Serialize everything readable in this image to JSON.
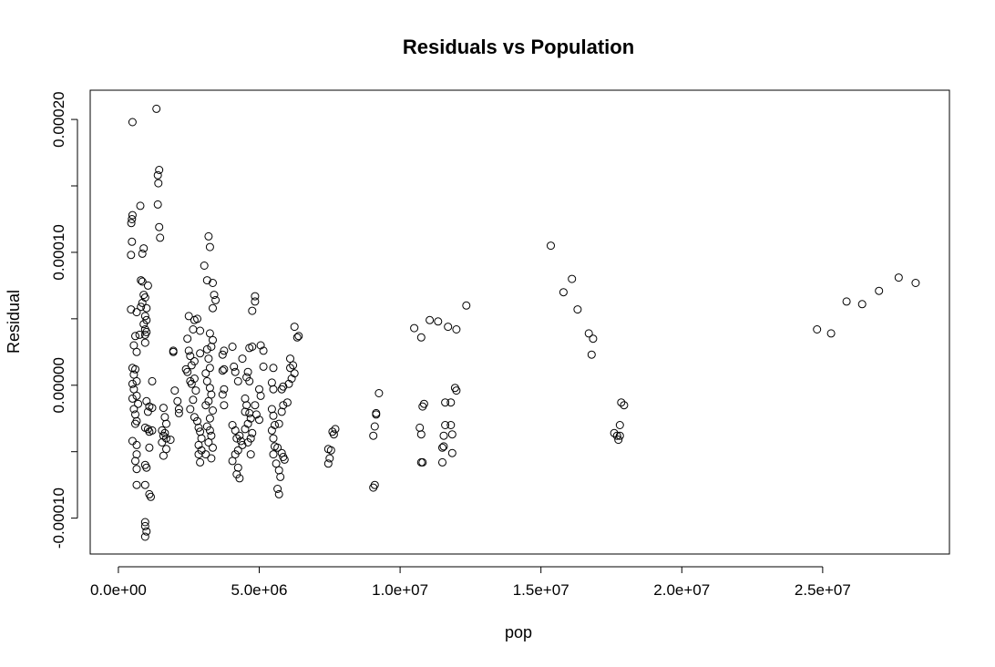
{
  "chart_data": {
    "type": "scatter",
    "title": "Residuals vs Population",
    "xlabel": "pop",
    "ylabel": "Residual",
    "xlim": [
      -1000000,
      29500000
    ],
    "ylim": [
      -0.000127,
      0.000222
    ],
    "x_ticks": [
      {
        "value": 0,
        "label": "0.0e+00"
      },
      {
        "value": 5000000,
        "label": "5.0e+06"
      },
      {
        "value": 10000000,
        "label": "1.0e+07"
      },
      {
        "value": 15000000,
        "label": "1.5e+07"
      },
      {
        "value": 20000000,
        "label": "2.0e+07"
      },
      {
        "value": 25000000,
        "label": "2.5e+07"
      }
    ],
    "y_ticks": [
      {
        "value": -0.0001,
        "label": "-0.00010"
      },
      {
        "value": -5e-05,
        "label": ""
      },
      {
        "value": 0.0,
        "label": "0.00000"
      },
      {
        "value": 5e-05,
        "label": ""
      },
      {
        "value": 0.0001,
        "label": "0.00010"
      },
      {
        "value": 0.00015,
        "label": ""
      },
      {
        "value": 0.0002,
        "label": "0.00020"
      }
    ],
    "grid": false,
    "marker": "open-circle",
    "points": [
      [
        500000,
        0.000198
      ],
      [
        1350000,
        0.000208
      ],
      [
        1450000,
        0.000162
      ],
      [
        1400000,
        0.000158
      ],
      [
        1420000,
        0.000152
      ],
      [
        1400000,
        0.000136
      ],
      [
        1450000,
        0.000119
      ],
      [
        1480000,
        0.000111
      ],
      [
        500000,
        0.000128
      ],
      [
        480000,
        0.000125
      ],
      [
        460000,
        0.000122
      ],
      [
        780000,
        0.000135
      ],
      [
        480000,
        0.000108
      ],
      [
        900000,
        0.000103
      ],
      [
        850000,
        9.9e-05
      ],
      [
        450000,
        9.8e-05
      ],
      [
        800000,
        7.9e-05
      ],
      [
        850000,
        7.8e-05
      ],
      [
        1050000,
        7.5e-05
      ],
      [
        900000,
        6.8e-05
      ],
      [
        950000,
        6.6e-05
      ],
      [
        850000,
        6.2e-05
      ],
      [
        1000000,
        5.8e-05
      ],
      [
        800000,
        5.9e-05
      ],
      [
        950000,
        5.2e-05
      ],
      [
        1000000,
        4.9e-05
      ],
      [
        450000,
        5.7e-05
      ],
      [
        650000,
        5.5e-05
      ],
      [
        900000,
        4.6e-05
      ],
      [
        950000,
        4.2e-05
      ],
      [
        1000000,
        4e-05
      ],
      [
        950000,
        3.8e-05
      ],
      [
        750000,
        3.8e-05
      ],
      [
        600000,
        3.7e-05
      ],
      [
        550000,
        3e-05
      ],
      [
        650000,
        2.5e-05
      ],
      [
        950000,
        3.2e-05
      ],
      [
        500000,
        1.3e-05
      ],
      [
        600000,
        1.2e-05
      ],
      [
        550000,
        8e-06
      ],
      [
        650000,
        3e-06
      ],
      [
        500000,
        1e-06
      ],
      [
        550000,
        -3e-06
      ],
      [
        650000,
        -8e-06
      ],
      [
        500000,
        -1e-05
      ],
      [
        700000,
        -1.4e-05
      ],
      [
        550000,
        -1.8e-05
      ],
      [
        600000,
        -2.2e-05
      ],
      [
        650000,
        -2.7e-05
      ],
      [
        600000,
        -2.9e-05
      ],
      [
        1000000,
        -1.2e-05
      ],
      [
        1100000,
        -1.6e-05
      ],
      [
        1200000,
        3e-06
      ],
      [
        1050000,
        -2e-05
      ],
      [
        1200000,
        -1.7e-05
      ],
      [
        950000,
        -3.2e-05
      ],
      [
        1050000,
        -3.3e-05
      ],
      [
        1100000,
        -3.5e-05
      ],
      [
        1200000,
        -3.4e-05
      ],
      [
        500000,
        -4.2e-05
      ],
      [
        650000,
        -4.5e-05
      ],
      [
        650000,
        -5.2e-05
      ],
      [
        600000,
        -5.7e-05
      ],
      [
        650000,
        -6.3e-05
      ],
      [
        1100000,
        -4.7e-05
      ],
      [
        950000,
        -6e-05
      ],
      [
        1000000,
        -6.2e-05
      ],
      [
        650000,
        -7.5e-05
      ],
      [
        950000,
        -7.5e-05
      ],
      [
        1100000,
        -8.2e-05
      ],
      [
        1150000,
        -8.4e-05
      ],
      [
        950000,
        -0.000103
      ],
      [
        950000,
        -0.000106
      ],
      [
        1000000,
        -0.00011
      ],
      [
        950000,
        -0.000114
      ],
      [
        1600000,
        -1.7e-05
      ],
      [
        1650000,
        -2.4e-05
      ],
      [
        1700000,
        -2.9e-05
      ],
      [
        1550000,
        -3.4e-05
      ],
      [
        1650000,
        -3.6e-05
      ],
      [
        1600000,
        -3.8e-05
      ],
      [
        1700000,
        -4e-05
      ],
      [
        1550000,
        -4.3e-05
      ],
      [
        1700000,
        -4.8e-05
      ],
      [
        1600000,
        -5.3e-05
      ],
      [
        1850000,
        -4.1e-05
      ],
      [
        1950000,
        2.6e-05
      ],
      [
        1950000,
        2.5e-05
      ],
      [
        2000000,
        -4e-06
      ],
      [
        2100000,
        -1.2e-05
      ],
      [
        2150000,
        -1.8e-05
      ],
      [
        2150000,
        -2.1e-05
      ],
      [
        2400000,
        1.2e-05
      ],
      [
        2450000,
        1e-05
      ],
      [
        2450000,
        3.5e-05
      ],
      [
        2500000,
        5.2e-05
      ],
      [
        2700000,
        4.9e-05
      ],
      [
        2800000,
        5e-05
      ],
      [
        2900000,
        4.1e-05
      ],
      [
        2650000,
        4.2e-05
      ],
      [
        2500000,
        2.6e-05
      ],
      [
        2550000,
        2.2e-05
      ],
      [
        2600000,
        1.5e-05
      ],
      [
        2700000,
        1.8e-05
      ],
      [
        2900000,
        2.4e-05
      ],
      [
        2550000,
        3e-06
      ],
      [
        2600000,
        1e-06
      ],
      [
        2700000,
        5e-06
      ],
      [
        2750000,
        -4e-06
      ],
      [
        2650000,
        -1.1e-05
      ],
      [
        2550000,
        -1.8e-05
      ],
      [
        2700000,
        -2.4e-05
      ],
      [
        2800000,
        -2.7e-05
      ],
      [
        2850000,
        -3.2e-05
      ],
      [
        2900000,
        -3.5e-05
      ],
      [
        2950000,
        -4e-05
      ],
      [
        2850000,
        -4.5e-05
      ],
      [
        2950000,
        -4.9e-05
      ],
      [
        2850000,
        -5.2e-05
      ],
      [
        2900000,
        -5.8e-05
      ],
      [
        3050000,
        9e-05
      ],
      [
        3200000,
        0.000112
      ],
      [
        3250000,
        0.000104
      ],
      [
        3150000,
        7.9e-05
      ],
      [
        3350000,
        7.7e-05
      ],
      [
        3400000,
        6.8e-05
      ],
      [
        3450000,
        6.4e-05
      ],
      [
        3350000,
        5.8e-05
      ],
      [
        3250000,
        3.9e-05
      ],
      [
        3350000,
        3.4e-05
      ],
      [
        3300000,
        2.9e-05
      ],
      [
        3150000,
        2.7e-05
      ],
      [
        3200000,
        2e-05
      ],
      [
        3250000,
        1.3e-05
      ],
      [
        3100000,
        9e-06
      ],
      [
        3150000,
        3e-06
      ],
      [
        3250000,
        -2e-06
      ],
      [
        3300000,
        -7e-06
      ],
      [
        3200000,
        -1.2e-05
      ],
      [
        3100000,
        -1.5e-05
      ],
      [
        3350000,
        -1.9e-05
      ],
      [
        3250000,
        -2.5e-05
      ],
      [
        3150000,
        -3.1e-05
      ],
      [
        3250000,
        -3.4e-05
      ],
      [
        3300000,
        -3.8e-05
      ],
      [
        3200000,
        -4.3e-05
      ],
      [
        3350000,
        -4.7e-05
      ],
      [
        3100000,
        -5.2e-05
      ],
      [
        3300000,
        -5.5e-05
      ],
      [
        3750000,
        2.6e-05
      ],
      [
        3700000,
        2.3e-05
      ],
      [
        3750000,
        1.2e-05
      ],
      [
        3700000,
        1.1e-05
      ],
      [
        3750000,
        -3e-06
      ],
      [
        3700000,
        -7e-06
      ],
      [
        3750000,
        -1.5e-05
      ],
      [
        4050000,
        2.9e-05
      ],
      [
        4100000,
        1.4e-05
      ],
      [
        4150000,
        1e-05
      ],
      [
        4250000,
        3e-06
      ],
      [
        4050000,
        -3e-05
      ],
      [
        4150000,
        -3.4e-05
      ],
      [
        4300000,
        -3.8e-05
      ],
      [
        4200000,
        -4e-05
      ],
      [
        4350000,
        -4.2e-05
      ],
      [
        4400000,
        -4.5e-05
      ],
      [
        4250000,
        -4.9e-05
      ],
      [
        4150000,
        -5.2e-05
      ],
      [
        4050000,
        -5.7e-05
      ],
      [
        4250000,
        -6.2e-05
      ],
      [
        4200000,
        -6.7e-05
      ],
      [
        4300000,
        -7e-05
      ],
      [
        4400000,
        2e-05
      ],
      [
        4500000,
        -1e-05
      ],
      [
        4550000,
        -1.5e-05
      ],
      [
        4500000,
        -2e-05
      ],
      [
        4650000,
        -2.1e-05
      ],
      [
        4700000,
        -2.5e-05
      ],
      [
        4600000,
        -2.9e-05
      ],
      [
        4500000,
        -3.3e-05
      ],
      [
        4750000,
        -3.6e-05
      ],
      [
        4700000,
        -4e-05
      ],
      [
        4600000,
        -4.3e-05
      ],
      [
        4700000,
        -5.2e-05
      ],
      [
        4600000,
        1e-05
      ],
      [
        4550000,
        6e-06
      ],
      [
        4650000,
        3e-06
      ],
      [
        4750000,
        2.9e-05
      ],
      [
        4650000,
        2.8e-05
      ],
      [
        4850000,
        6.7e-05
      ],
      [
        4850000,
        6.3e-05
      ],
      [
        4750000,
        5.6e-05
      ],
      [
        4850000,
        -1.5e-05
      ],
      [
        4900000,
        -2.2e-05
      ],
      [
        5000000,
        -2.6e-05
      ],
      [
        5050000,
        -8e-06
      ],
      [
        5000000,
        -3e-06
      ],
      [
        5150000,
        1.4e-05
      ],
      [
        5050000,
        3e-05
      ],
      [
        5150000,
        2.6e-05
      ],
      [
        5500000,
        1.3e-05
      ],
      [
        5450000,
        2e-06
      ],
      [
        5500000,
        -3e-06
      ],
      [
        5450000,
        -1.8e-05
      ],
      [
        5500000,
        -2.3e-05
      ],
      [
        5550000,
        -3e-05
      ],
      [
        5450000,
        -3.4e-05
      ],
      [
        5500000,
        -4e-05
      ],
      [
        5550000,
        -4.6e-05
      ],
      [
        5500000,
        -5.2e-05
      ],
      [
        5600000,
        -5.9e-05
      ],
      [
        5700000,
        -6.4e-05
      ],
      [
        5650000,
        -7.8e-05
      ],
      [
        5700000,
        -8.2e-05
      ],
      [
        5750000,
        -6.9e-05
      ],
      [
        5650000,
        -4.7e-05
      ],
      [
        5800000,
        -5.1e-05
      ],
      [
        5900000,
        -5.6e-05
      ],
      [
        5850000,
        -5.4e-05
      ],
      [
        5700000,
        -2.9e-05
      ],
      [
        5800000,
        -2e-05
      ],
      [
        5850000,
        -1.5e-05
      ],
      [
        5800000,
        -3e-06
      ],
      [
        5850000,
        -1e-06
      ],
      [
        6050000,
        1e-06
      ],
      [
        6000000,
        -1.3e-05
      ],
      [
        6100000,
        1.3e-05
      ],
      [
        6150000,
        5e-06
      ],
      [
        6250000,
        9e-06
      ],
      [
        6200000,
        1.5e-05
      ],
      [
        6250000,
        4.4e-05
      ],
      [
        6400000,
        3.7e-05
      ],
      [
        6350000,
        3.6e-05
      ],
      [
        6100000,
        2e-05
      ],
      [
        7450000,
        -4.8e-05
      ],
      [
        7500000,
        -5.5e-05
      ],
      [
        7450000,
        -5.9e-05
      ],
      [
        7550000,
        -4.9e-05
      ],
      [
        7650000,
        -3.7e-05
      ],
      [
        7700000,
        -3.3e-05
      ],
      [
        7600000,
        -3.5e-05
      ],
      [
        9100000,
        -7.5e-05
      ],
      [
        9050000,
        -7.7e-05
      ],
      [
        9050000,
        -3.8e-05
      ],
      [
        9100000,
        -3.1e-05
      ],
      [
        9150000,
        -2.2e-05
      ],
      [
        9250000,
        -6e-06
      ],
      [
        9150000,
        -2.1e-05
      ],
      [
        10500000,
        4.3e-05
      ],
      [
        10750000,
        3.6e-05
      ],
      [
        11050000,
        4.9e-05
      ],
      [
        11350000,
        4.8e-05
      ],
      [
        11700000,
        4.4e-05
      ],
      [
        12000000,
        4.2e-05
      ],
      [
        12350000,
        6e-05
      ],
      [
        10750000,
        -5.8e-05
      ],
      [
        10800000,
        -5.8e-05
      ],
      [
        10750000,
        -3.7e-05
      ],
      [
        10700000,
        -3.2e-05
      ],
      [
        10850000,
        -1.4e-05
      ],
      [
        10800000,
        -1.6e-05
      ],
      [
        11500000,
        -5.8e-05
      ],
      [
        11550000,
        -4.6e-05
      ],
      [
        11500000,
        -4.7e-05
      ],
      [
        11550000,
        -3.8e-05
      ],
      [
        11600000,
        -3e-05
      ],
      [
        11600000,
        -1.3e-05
      ],
      [
        11800000,
        -1.3e-05
      ],
      [
        11800000,
        -3e-05
      ],
      [
        11850000,
        -3.7e-05
      ],
      [
        11850000,
        -5.1e-05
      ],
      [
        11950000,
        -2e-06
      ],
      [
        12000000,
        -4e-06
      ],
      [
        15350000,
        0.000105
      ],
      [
        16100000,
        8e-05
      ],
      [
        15800000,
        7e-05
      ],
      [
        16300000,
        5.7e-05
      ],
      [
        16700000,
        3.9e-05
      ],
      [
        16850000,
        3.5e-05
      ],
      [
        16800000,
        2.3e-05
      ],
      [
        17850000,
        -1.3e-05
      ],
      [
        17950000,
        -1.5e-05
      ],
      [
        17600000,
        -3.6e-05
      ],
      [
        17700000,
        -3.8e-05
      ],
      [
        17800000,
        -3.8e-05
      ],
      [
        17750000,
        -4.1e-05
      ],
      [
        17800000,
        -3e-05
      ],
      [
        24800000,
        4.2e-05
      ],
      [
        25300000,
        3.9e-05
      ],
      [
        25850000,
        6.3e-05
      ],
      [
        26400000,
        6.1e-05
      ],
      [
        27000000,
        7.1e-05
      ],
      [
        27700000,
        8.1e-05
      ],
      [
        28300000,
        7.7e-05
      ]
    ]
  }
}
